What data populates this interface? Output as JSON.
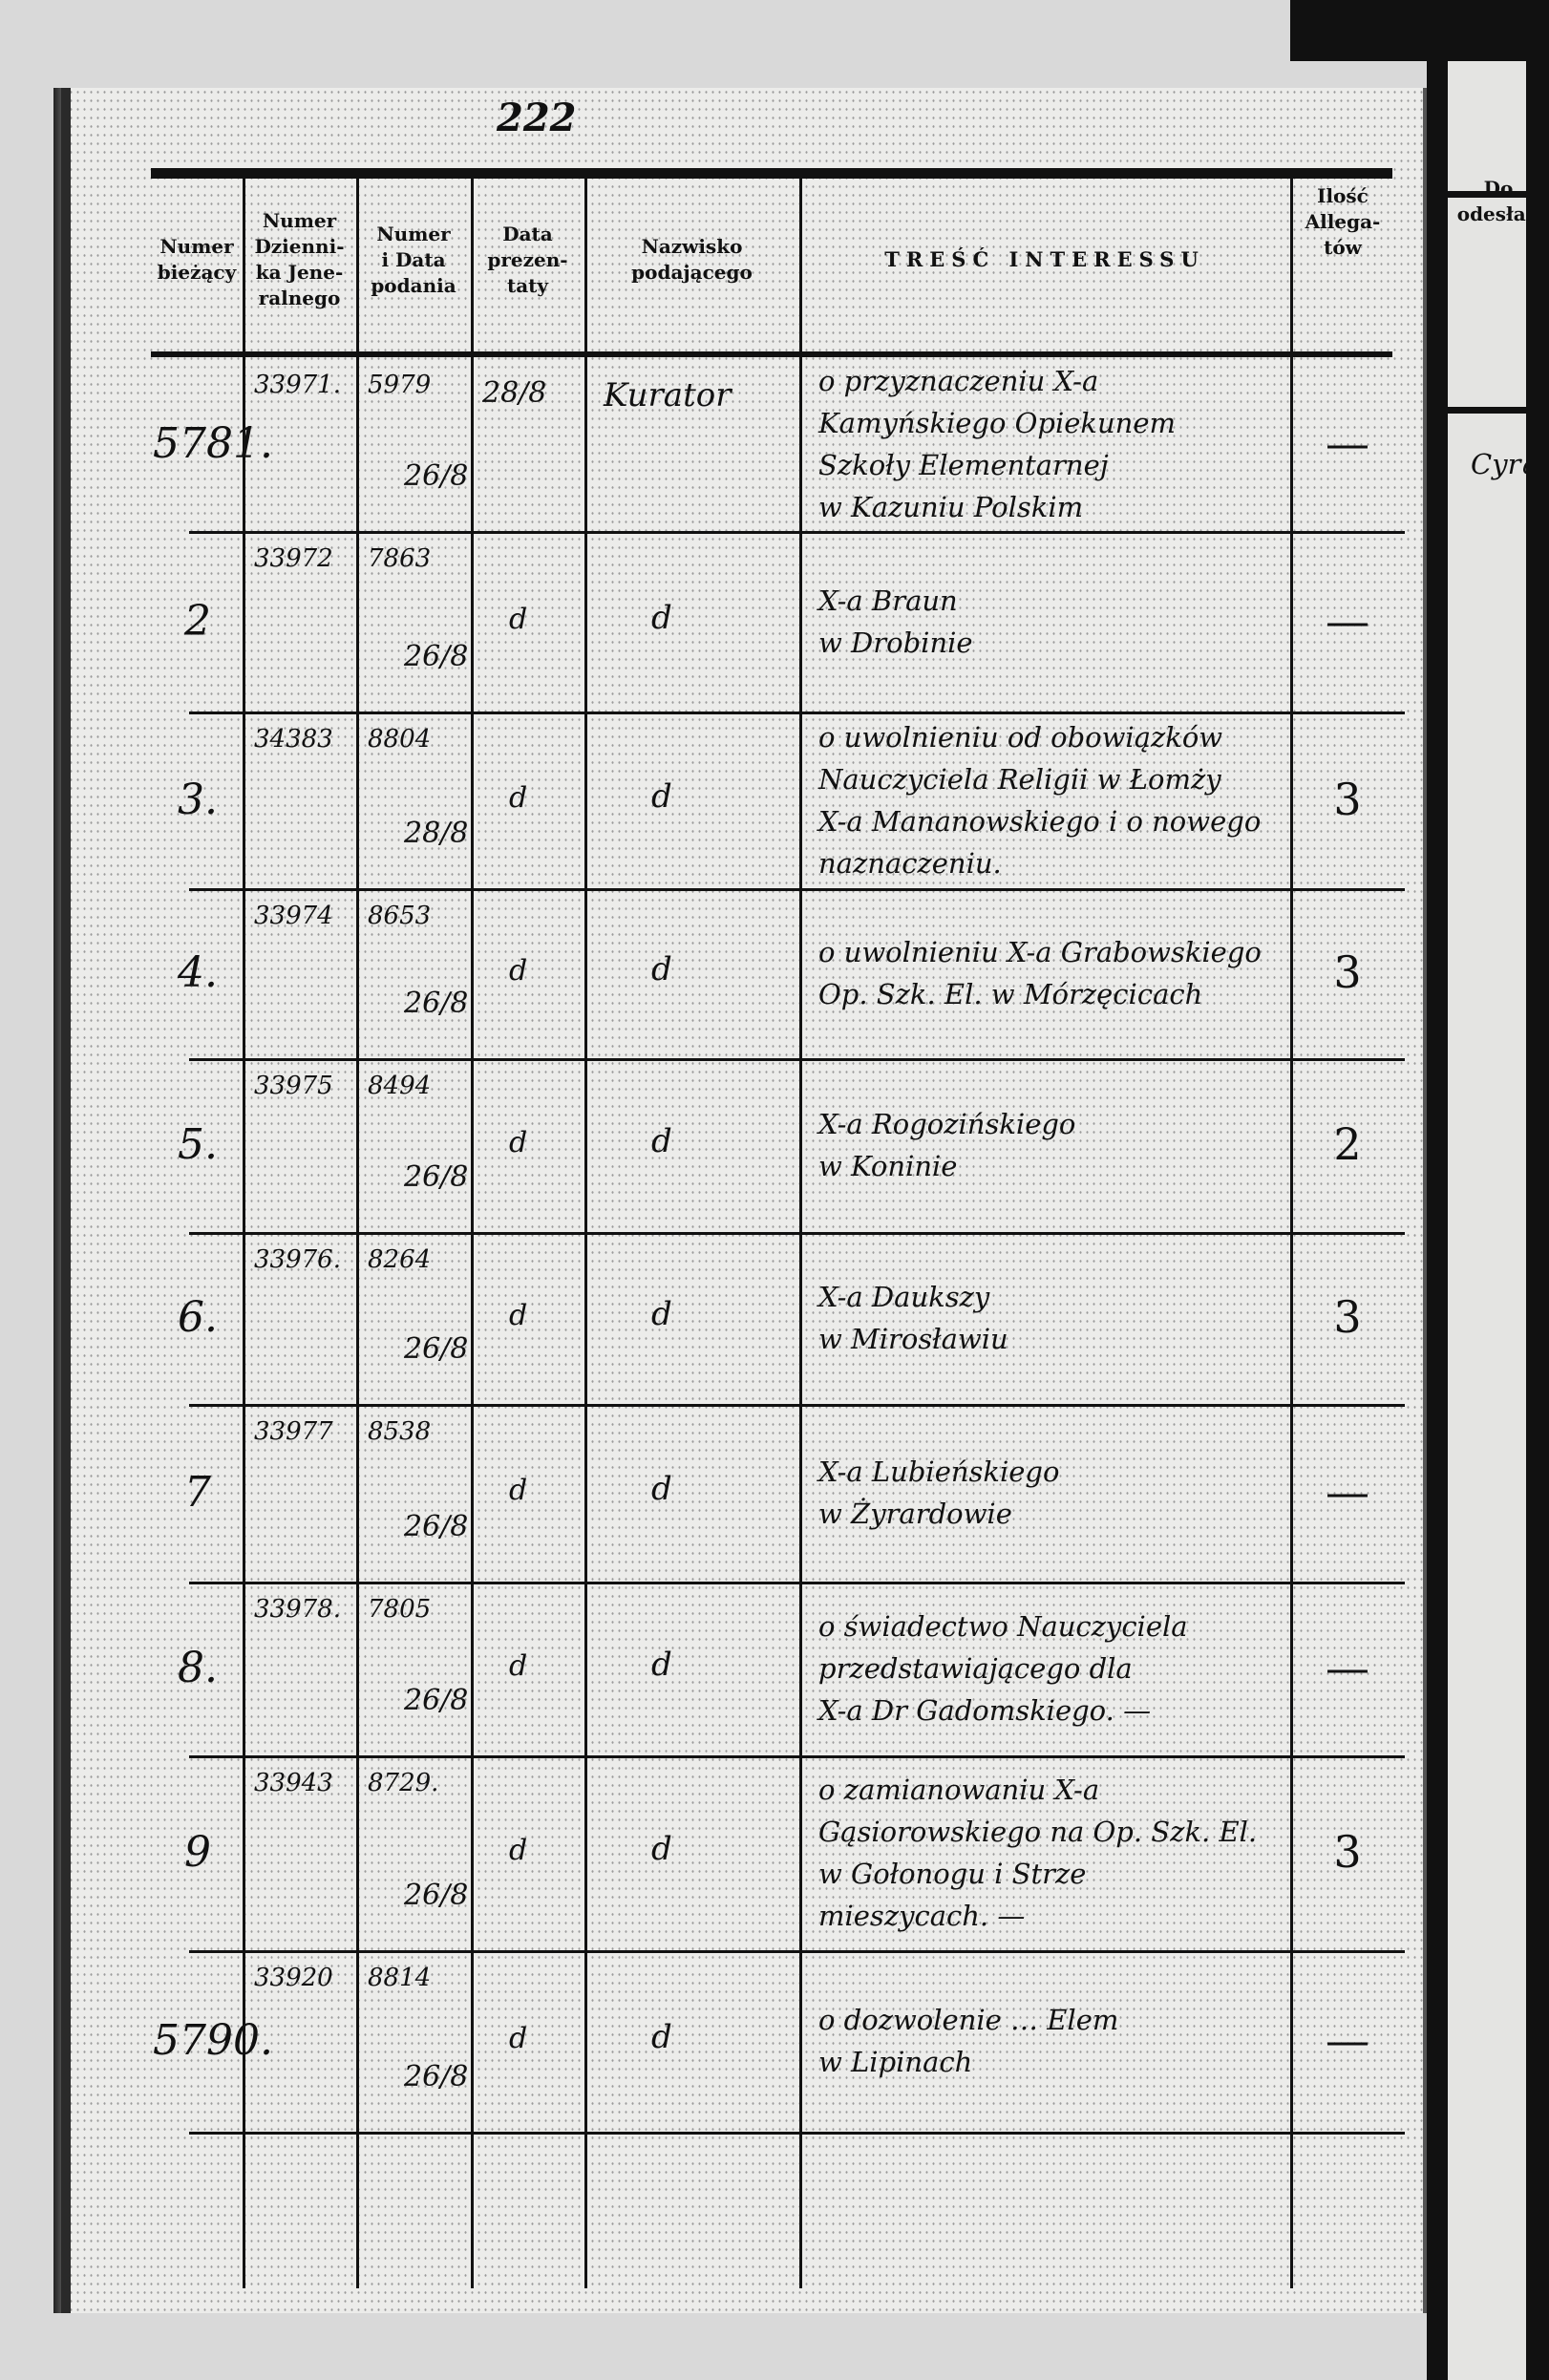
{
  "page_number": "222",
  "headers": {
    "current_no": [
      "Numer",
      "bieżący"
    ],
    "journal_no": [
      "Numer",
      "Dzienni-",
      "ka Jene-",
      "ralnego"
    ],
    "submission_no": [
      "Numer",
      "i Data",
      "podania"
    ],
    "presented_date": [
      "Data",
      "prezen-",
      "taty"
    ],
    "submitter": [
      "Nazwisko",
      "podającego"
    ],
    "content": "TREŚĆ INTERESSU",
    "attachments": [
      "Ilość",
      "Allega-",
      "tów"
    ],
    "next_page": [
      "Do",
      "odesłan"
    ]
  },
  "rows": [
    {
      "no": "5781.",
      "journal": "33971.",
      "sub_no": "5979",
      "sub_date": "26/8",
      "presented": "28/8",
      "submitter": "Kurator",
      "content": [
        "o przyznaczeniu X-a",
        "Kamyńskiego Opiekunem",
        "Szkoły Elementarnej",
        "w Kazuniu Polskim"
      ],
      "attachments": "—"
    },
    {
      "no": "2",
      "journal": "33972",
      "sub_no": "7863",
      "sub_date": "26/8",
      "presented": "d",
      "submitter": "d",
      "content": [
        "X-a Braun",
        "w Drobinie"
      ],
      "attachments": "—"
    },
    {
      "no": "3.",
      "journal": "34383",
      "sub_no": "8804",
      "sub_date": "28/8",
      "presented": "d",
      "submitter": "d",
      "content": [
        "o uwolnieniu od obowiązków",
        "Nauczyciela Religii w Łomży",
        "X-a Mananowskiego i o nowego",
        "naznaczeniu."
      ],
      "attachments": "3"
    },
    {
      "no": "4.",
      "journal": "33974",
      "sub_no": "8653",
      "sub_date": "26/8",
      "presented": "d",
      "submitter": "d",
      "content": [
        "o uwolnieniu X-a Grabowskiego",
        "Op. Szk. El. w Mórzęcicach"
      ],
      "attachments": "3"
    },
    {
      "no": "5.",
      "journal": "33975",
      "sub_no": "8494",
      "sub_date": "26/8",
      "presented": "d",
      "submitter": "d",
      "content": [
        "X-a Rogozińskiego",
        "w Koninie"
      ],
      "attachments": "2"
    },
    {
      "no": "6.",
      "journal": "33976.",
      "sub_no": "8264",
      "sub_date": "26/8",
      "presented": "d",
      "submitter": "d",
      "content": [
        "X-a Daukszy",
        "w Mirosławiu"
      ],
      "attachments": "3"
    },
    {
      "no": "7",
      "journal": "33977",
      "sub_no": "8538",
      "sub_date": "26/8",
      "presented": "d",
      "submitter": "d",
      "content": [
        "X-a Lubieńskiego",
        "w Żyrardowie"
      ],
      "attachments": "—"
    },
    {
      "no": "8.",
      "journal": "33978.",
      "sub_no": "7805",
      "sub_date": "26/8",
      "presented": "d",
      "submitter": "d",
      "content": [
        "o świadectwo Nauczyciela",
        "przedstawiającego dla",
        "X-a Dr Gadomskiego. —"
      ],
      "attachments": "—"
    },
    {
      "no": "9",
      "journal": "33943",
      "sub_no": "8729.",
      "sub_date": "26/8",
      "presented": "d",
      "submitter": "d",
      "content": [
        "o zamianowaniu X-a",
        "Gąsiorowskiego na Op. Szk. El.",
        "w Gołonogu i Strze",
        "mieszycach. —"
      ],
      "attachments": "3"
    },
    {
      "no": "5790.",
      "journal": "33920",
      "sub_no": "8814",
      "sub_date": "26/8",
      "presented": "d",
      "submitter": "d",
      "content": [
        "o dozwolenie … Elem",
        "w Lipinach"
      ],
      "attachments": "—"
    }
  ],
  "right_page_rows": [
    "Cyrqu"
  ]
}
